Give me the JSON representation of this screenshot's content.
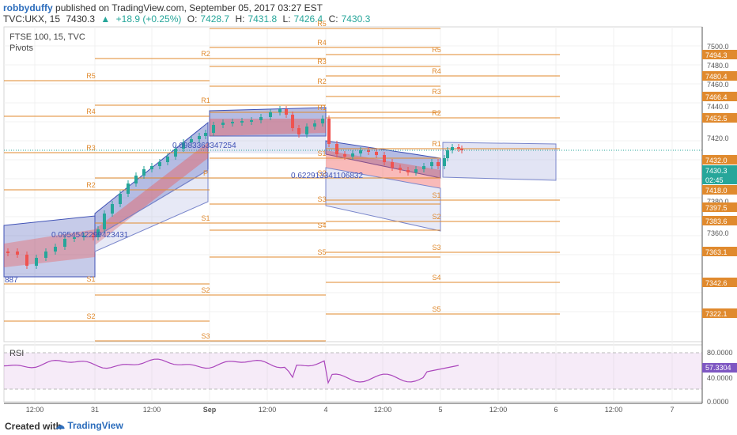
{
  "header": {
    "author": "robbyduffy",
    "published_text": "published on TradingView.com, September 05, 2017 03:27 EST",
    "symbol": "TVC:UKX, 15",
    "last": "7430.3",
    "change": "+18.9 (+0.25%)",
    "open_label": "O:",
    "open": "7428.7",
    "high_label": "H:",
    "high": "7431.8",
    "low_label": "L:",
    "low": "7426.4",
    "close_label": "C:",
    "close": "7430.3"
  },
  "legend": {
    "title": "FTSE 100, 15, TVC",
    "indicator": "Pivots"
  },
  "price_axis": {
    "ticks": [
      "7500.0",
      "7480.0",
      "7460.0",
      "7440.0",
      "7420.0",
      "7400.0",
      "7380.0",
      "7360.0",
      "7340.0"
    ],
    "tags": [
      {
        "text": "7494.3",
        "color": "#e08a2e"
      },
      {
        "text": "7480.4",
        "color": "#e08a2e"
      },
      {
        "text": "7466.4",
        "color": "#e08a2e"
      },
      {
        "text": "7452.5",
        "color": "#e08a2e"
      },
      {
        "text": "7432.0",
        "color": "#e08a2e"
      },
      {
        "text": "7430.3",
        "color": "#26a69a"
      },
      {
        "text": "02:45",
        "color": "#26a69a"
      },
      {
        "text": "7418.0",
        "color": "#e08a2e"
      },
      {
        "text": "7397.5",
        "color": "#e08a2e"
      },
      {
        "text": "7383.6",
        "color": "#e08a2e"
      },
      {
        "text": "7363.1",
        "color": "#e08a2e"
      },
      {
        "text": "7342.6",
        "color": "#e08a2e"
      },
      {
        "text": "7322.1",
        "color": "#e08a2e"
      }
    ]
  },
  "rsi": {
    "label": "RSI",
    "ticks": [
      "80.0000",
      "40.0000",
      "0.0000"
    ],
    "value": "57.3304",
    "value_color": "#7e57c2"
  },
  "time_axis": [
    "12:00",
    "31",
    "12:00",
    "Sep",
    "12:00",
    "4",
    "12:00",
    "5",
    "12:00",
    "6",
    "12:00",
    "7"
  ],
  "pivots": {
    "p1": [
      "R5",
      "R4",
      "R3",
      "R2",
      "S1",
      "S2"
    ],
    "p2": [
      "R2",
      "R1",
      "P",
      "S1",
      "S2",
      "S3"
    ],
    "p3": [
      "R5",
      "R4",
      "R3",
      "R2",
      "R1",
      "S1",
      "S2",
      "S3",
      "S4",
      "S5"
    ],
    "p4": [
      "R5",
      "R4",
      "R3",
      "R2",
      "R1",
      "S1",
      "S2",
      "S3",
      "S4",
      "S5"
    ]
  },
  "annotations": {
    "channel1": "0.0954542299423431",
    "channel2": "0.0983363347254",
    "channel3": "0.622913341106832",
    "edge": "887"
  },
  "colors": {
    "pivot_line": "#e08a2e",
    "up_candle": "#26a69a",
    "down_candle": "#ef5350",
    "channel_blue": "#5c6bc0",
    "channel_red": "#ef9a9a",
    "rsi_line": "#ab47bc"
  },
  "footer": {
    "created_with": "Created with",
    "brand": "TradingView"
  }
}
